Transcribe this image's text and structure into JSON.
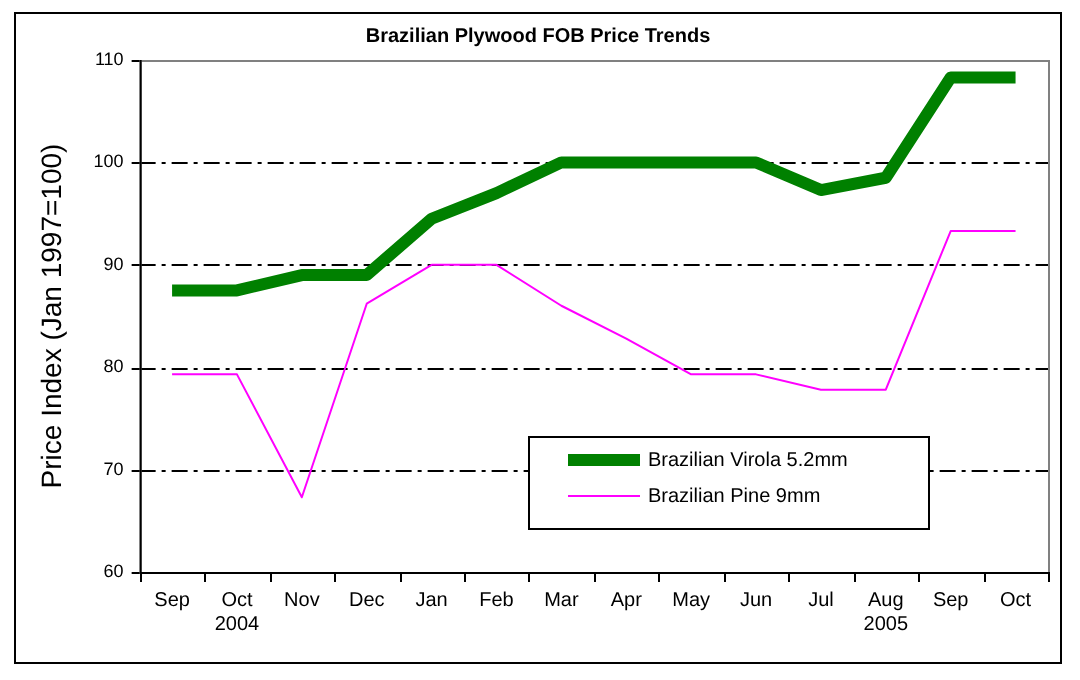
{
  "chart_data": {
    "type": "line",
    "title": "Brazilian Plywood FOB Price Trends",
    "ylabel": "Price Index (Jan 1997=100)",
    "categories": [
      "Sep",
      "Oct\n2004",
      "Nov",
      "Dec",
      "Jan",
      "Feb",
      "Mar",
      "Apr",
      "May",
      "Jun",
      "Jul",
      "Aug\n2005",
      "Sep",
      "Oct"
    ],
    "series": [
      {
        "name": "Brazilian Virola 5.2mm",
        "color": "#008000",
        "values": [
          87.5,
          87.5,
          89,
          89,
          94.5,
          97,
          100,
          100,
          100,
          100,
          97.3,
          98.5,
          108.3,
          108.3
        ]
      },
      {
        "name": "Brazilian Pine 9mm",
        "color": "#ff00ff",
        "values": [
          79.3,
          79.3,
          67.3,
          86.2,
          90,
          90,
          86,
          82.8,
          79.3,
          79.3,
          77.8,
          77.8,
          93.3,
          93.3
        ]
      }
    ],
    "ylim": [
      60,
      110
    ],
    "yticks": [
      60,
      70,
      80,
      90,
      100,
      110
    ],
    "grid": "y",
    "legend": "bottom right",
    "marker": "none",
    "line_style": "solid"
  }
}
